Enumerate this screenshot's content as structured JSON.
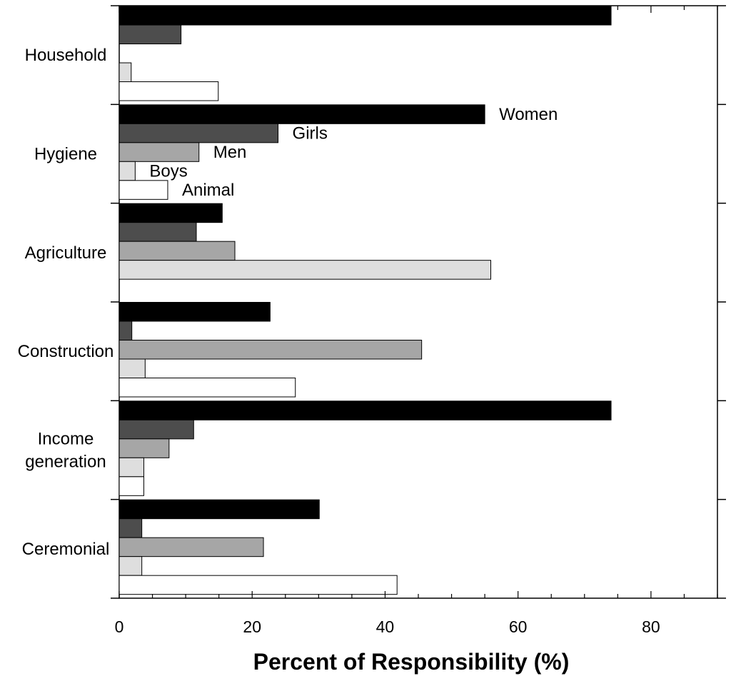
{
  "chart_data": {
    "type": "bar",
    "orientation": "horizontal",
    "title": "",
    "xlabel": "Percent of Responsibility (%)",
    "ylabel": "",
    "xlim": [
      0,
      90
    ],
    "x_ticks": [
      0,
      20,
      40,
      60,
      80
    ],
    "x_tick_labels": [
      "0",
      "20",
      "40",
      "60",
      "80"
    ],
    "grid": false,
    "legend_placement": "inline labels next to Hygiene bars",
    "categories": [
      {
        "lines": [
          "Household"
        ]
      },
      {
        "lines": [
          "Hygiene"
        ]
      },
      {
        "lines": [
          "Agriculture"
        ]
      },
      {
        "lines": [
          "Construction"
        ]
      },
      {
        "lines": [
          "Income",
          "generation"
        ]
      },
      {
        "lines": [
          "Ceremonial"
        ]
      }
    ],
    "series": [
      {
        "name": "Women",
        "color": "#000000",
        "values": [
          74,
          55,
          15.5,
          22.7,
          74,
          30.1
        ]
      },
      {
        "name": "Girls",
        "color": "#4d4d4d",
        "values": [
          9.3,
          23.9,
          11.6,
          1.9,
          11.2,
          3.4
        ]
      },
      {
        "name": "Men",
        "color": "#a6a6a6",
        "values": [
          0,
          12,
          17.4,
          45.5,
          7.5,
          21.7
        ]
      },
      {
        "name": "Boys",
        "color": "#dedede",
        "values": [
          1.8,
          2.4,
          55.9,
          3.9,
          3.7,
          3.4
        ]
      },
      {
        "name": "Animal",
        "color": "#ffffff",
        "values": [
          14.9,
          7.3,
          0,
          26.5,
          3.7,
          41.8
        ]
      }
    ]
  }
}
